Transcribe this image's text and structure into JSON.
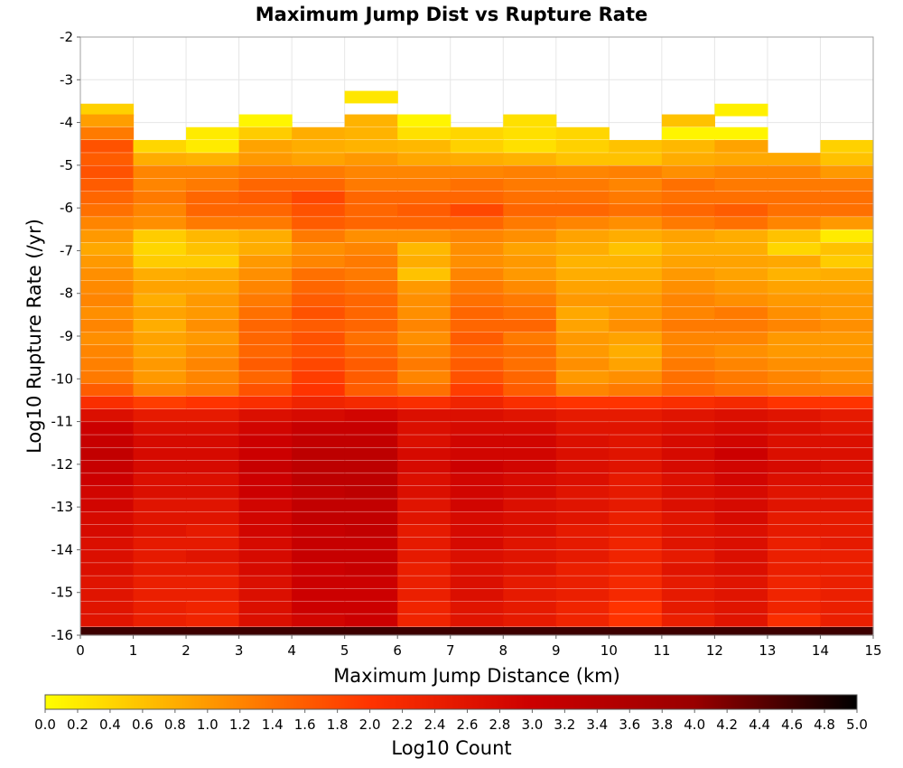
{
  "chart_data": {
    "type": "heatmap",
    "title": "Maximum Jump Dist vs Rupture Rate",
    "xlabel": "Maximum Jump Distance (km)",
    "ylabel": "Log10 Rupture Rate (/yr)",
    "colorbar_label": "Log10 Count",
    "xlim": [
      0,
      15
    ],
    "ylim": [
      -16,
      -2
    ],
    "x_bin_width": 1,
    "y_bin_width": 0.28,
    "x_ticks": [
      "0",
      "1",
      "2",
      "3",
      "4",
      "5",
      "6",
      "7",
      "8",
      "9",
      "10",
      "11",
      "12",
      "13",
      "14",
      "15"
    ],
    "y_ticks": [
      "-2",
      "-3",
      "-4",
      "-5",
      "-6",
      "-7",
      "-8",
      "-9",
      "-10",
      "-11",
      "-12",
      "-13",
      "-14",
      "-15",
      "-16"
    ],
    "colorbar_range": [
      0,
      5
    ],
    "colorbar_ticks": [
      "0.0",
      "0.2",
      "0.4",
      "0.6",
      "0.8",
      "1.0",
      "1.2",
      "1.4",
      "1.6",
      "1.8",
      "2.0",
      "2.2",
      "2.4",
      "2.6",
      "2.8",
      "3.0",
      "3.2",
      "3.4",
      "3.6",
      "3.8",
      "4.0",
      "4.2",
      "4.4",
      "4.6",
      "4.8",
      "5.0"
    ],
    "colormap": [
      "#ffff00",
      "#ff9900",
      "#ff3300",
      "#cc0000",
      "#990000",
      "#000000"
    ],
    "grid": true,
    "rows": [
      {
        "y": -3.4,
        "values": [
          null,
          null,
          null,
          null,
          null,
          0.25,
          null,
          null,
          null,
          null,
          null,
          null,
          null,
          null,
          null
        ]
      },
      {
        "y": -3.7,
        "values": [
          0.45,
          null,
          null,
          null,
          null,
          null,
          null,
          null,
          null,
          null,
          null,
          null,
          0.15,
          null,
          null
        ]
      },
      {
        "y": -3.95,
        "values": [
          0.95,
          null,
          null,
          0.1,
          null,
          0.75,
          0.1,
          null,
          0.3,
          null,
          null,
          0.6,
          null,
          null,
          null
        ]
      },
      {
        "y": -4.25,
        "values": [
          1.3,
          null,
          0.2,
          0.5,
          0.8,
          0.75,
          0.3,
          0.4,
          0.3,
          0.4,
          null,
          0.1,
          0.1,
          null,
          null
        ]
      },
      {
        "y": -4.55,
        "values": [
          1.7,
          0.4,
          0.2,
          0.9,
          0.8,
          0.75,
          0.7,
          0.45,
          0.3,
          0.45,
          0.6,
          0.7,
          0.9,
          null,
          0.45
        ]
      },
      {
        "y": -4.85,
        "values": [
          1.6,
          0.8,
          0.75,
          1.0,
          0.9,
          1.0,
          0.85,
          0.8,
          0.75,
          0.6,
          0.6,
          0.8,
          0.85,
          0.85,
          0.6
        ]
      },
      {
        "y": -5.15,
        "values": [
          1.7,
          1.2,
          1.2,
          1.3,
          1.3,
          1.2,
          1.2,
          1.2,
          1.25,
          1.2,
          1.25,
          1.1,
          1.2,
          1.2,
          1.0
        ]
      },
      {
        "y": -5.45,
        "values": [
          1.6,
          1.2,
          1.3,
          1.5,
          1.5,
          1.3,
          1.3,
          1.4,
          1.3,
          1.3,
          1.2,
          1.4,
          1.3,
          1.3,
          1.3
        ]
      },
      {
        "y": -5.75,
        "values": [
          1.5,
          1.3,
          1.5,
          1.6,
          1.8,
          1.5,
          1.5,
          1.5,
          1.4,
          1.4,
          1.3,
          1.4,
          1.4,
          1.4,
          1.4
        ]
      },
      {
        "y": -6.05,
        "values": [
          1.4,
          1.2,
          1.5,
          1.5,
          1.7,
          1.5,
          1.6,
          1.8,
          1.5,
          1.5,
          1.4,
          1.5,
          1.6,
          1.4,
          1.4
        ]
      },
      {
        "y": -6.35,
        "values": [
          1.2,
          1.1,
          1.3,
          1.3,
          1.6,
          1.5,
          1.5,
          1.5,
          1.3,
          1.2,
          1.1,
          1.3,
          1.4,
          1.2,
          1.0
        ]
      },
      {
        "y": -6.65,
        "values": [
          1.0,
          0.5,
          0.7,
          0.8,
          1.3,
          1.1,
          1.1,
          1.2,
          1.1,
          0.9,
          0.8,
          0.9,
          0.8,
          0.6,
          0.2
        ]
      },
      {
        "y": -6.95,
        "values": [
          0.85,
          0.4,
          0.6,
          0.8,
          1.1,
          1.2,
          0.7,
          1.1,
          0.9,
          0.8,
          0.6,
          0.8,
          0.8,
          0.4,
          0.6
        ]
      },
      {
        "y": -7.25,
        "values": [
          1.0,
          0.5,
          0.5,
          1.0,
          1.2,
          1.3,
          0.8,
          1.1,
          1.0,
          0.75,
          0.75,
          0.9,
          0.9,
          0.85,
          0.5
        ]
      },
      {
        "y": -7.55,
        "values": [
          1.1,
          0.8,
          0.85,
          1.1,
          1.4,
          1.3,
          0.6,
          1.2,
          1.0,
          0.8,
          0.8,
          1.0,
          0.9,
          0.75,
          0.8
        ]
      },
      {
        "y": -7.85,
        "values": [
          1.15,
          0.9,
          0.9,
          1.2,
          1.5,
          1.4,
          1.0,
          1.3,
          1.15,
          0.9,
          0.9,
          1.1,
          1.0,
          0.9,
          0.9
        ]
      },
      {
        "y": -8.15,
        "values": [
          1.2,
          0.8,
          1.0,
          1.3,
          1.6,
          1.5,
          1.1,
          1.4,
          1.3,
          1.0,
          1.0,
          1.2,
          1.1,
          1.0,
          1.0
        ]
      },
      {
        "y": -8.45,
        "values": [
          1.1,
          0.9,
          1.0,
          1.4,
          1.7,
          1.5,
          1.1,
          1.5,
          1.4,
          0.85,
          1.0,
          1.2,
          1.3,
          1.1,
          1.0
        ]
      },
      {
        "y": -8.75,
        "values": [
          1.2,
          0.8,
          1.1,
          1.5,
          1.6,
          1.5,
          1.2,
          1.5,
          1.5,
          0.9,
          1.1,
          1.3,
          1.3,
          1.2,
          1.1
        ]
      },
      {
        "y": -9.05,
        "values": [
          1.1,
          0.9,
          1.0,
          1.5,
          1.7,
          1.4,
          1.1,
          1.6,
          1.3,
          1.0,
          0.9,
          1.2,
          1.2,
          1.0,
          1.0
        ]
      },
      {
        "y": -9.35,
        "values": [
          1.2,
          0.9,
          1.1,
          1.5,
          1.7,
          1.5,
          1.2,
          1.5,
          1.4,
          1.0,
          0.8,
          1.2,
          1.1,
          1.0,
          1.0
        ]
      },
      {
        "y": -9.65,
        "values": [
          1.25,
          1.0,
          1.2,
          1.6,
          1.8,
          1.6,
          1.3,
          1.6,
          1.4,
          1.1,
          0.9,
          1.3,
          1.2,
          1.1,
          1.1
        ]
      },
      {
        "y": -9.95,
        "values": [
          1.3,
          1.0,
          1.2,
          1.5,
          1.9,
          1.6,
          1.2,
          1.7,
          1.5,
          1.0,
          1.1,
          1.4,
          1.3,
          1.2,
          1.1
        ]
      },
      {
        "y": -10.25,
        "values": [
          1.6,
          1.2,
          1.3,
          1.7,
          2.0,
          1.6,
          1.4,
          1.9,
          1.6,
          1.2,
          1.3,
          1.5,
          1.4,
          1.3,
          1.3
        ]
      },
      {
        "y": -10.55,
        "values": [
          2.1,
          1.9,
          2.0,
          2.1,
          2.3,
          2.2,
          2.1,
          2.3,
          2.1,
          2.0,
          2.0,
          2.1,
          2.2,
          2.0,
          2.0
        ]
      },
      {
        "y": -10.85,
        "values": [
          2.7,
          2.5,
          2.5,
          2.7,
          2.8,
          2.9,
          2.7,
          2.7,
          2.6,
          2.5,
          2.5,
          2.6,
          2.7,
          2.6,
          2.5
        ]
      },
      {
        "y": -11.15,
        "values": [
          3.0,
          2.7,
          2.7,
          2.9,
          3.1,
          3.1,
          2.7,
          2.8,
          2.8,
          2.6,
          2.6,
          2.7,
          2.8,
          2.7,
          2.6
        ]
      },
      {
        "y": -11.45,
        "values": [
          3.1,
          2.8,
          2.8,
          3.0,
          3.2,
          3.2,
          2.7,
          2.9,
          2.9,
          2.7,
          2.6,
          2.8,
          2.9,
          2.7,
          2.7
        ]
      },
      {
        "y": -11.75,
        "values": [
          3.2,
          2.8,
          2.8,
          3.0,
          3.3,
          3.3,
          2.8,
          2.9,
          2.9,
          2.7,
          2.6,
          2.8,
          3.0,
          2.7,
          2.7
        ]
      },
      {
        "y": -12.05,
        "values": [
          3.1,
          2.8,
          2.8,
          3.1,
          3.3,
          3.3,
          2.8,
          3.0,
          2.9,
          2.7,
          2.6,
          2.8,
          2.9,
          2.8,
          2.7
        ]
      },
      {
        "y": -12.35,
        "values": [
          3.0,
          2.7,
          2.7,
          3.0,
          3.3,
          3.3,
          2.7,
          2.9,
          2.8,
          2.7,
          2.5,
          2.7,
          2.9,
          2.7,
          2.7
        ]
      },
      {
        "y": -12.65,
        "values": [
          2.9,
          2.7,
          2.7,
          3.0,
          3.2,
          3.3,
          2.7,
          2.9,
          2.8,
          2.6,
          2.5,
          2.7,
          2.8,
          2.6,
          2.6
        ]
      },
      {
        "y": -12.95,
        "values": [
          2.9,
          2.6,
          2.6,
          2.9,
          3.2,
          3.2,
          2.6,
          2.9,
          2.7,
          2.6,
          2.5,
          2.7,
          2.8,
          2.6,
          2.6
        ]
      },
      {
        "y": -13.25,
        "values": [
          2.8,
          2.6,
          2.6,
          2.9,
          3.2,
          3.2,
          2.6,
          2.8,
          2.7,
          2.6,
          2.4,
          2.6,
          2.8,
          2.5,
          2.5
        ]
      },
      {
        "y": -13.55,
        "values": [
          2.8,
          2.6,
          2.5,
          2.9,
          3.1,
          3.2,
          2.5,
          2.8,
          2.7,
          2.5,
          2.4,
          2.6,
          2.7,
          2.5,
          2.5
        ]
      },
      {
        "y": -13.85,
        "values": [
          2.7,
          2.5,
          2.5,
          2.8,
          3.1,
          3.1,
          2.5,
          2.8,
          2.6,
          2.5,
          2.3,
          2.6,
          2.7,
          2.4,
          2.5
        ]
      },
      {
        "y": -14.15,
        "values": [
          2.7,
          2.5,
          2.6,
          2.8,
          3.1,
          3.1,
          2.5,
          2.7,
          2.6,
          2.5,
          2.3,
          2.5,
          2.7,
          2.4,
          2.4
        ]
      },
      {
        "y": -14.45,
        "values": [
          2.7,
          2.5,
          2.5,
          2.8,
          3.0,
          3.1,
          2.4,
          2.7,
          2.6,
          2.4,
          2.3,
          2.6,
          2.7,
          2.4,
          2.4
        ]
      },
      {
        "y": -14.75,
        "values": [
          2.6,
          2.4,
          2.4,
          2.7,
          3.0,
          3.0,
          2.4,
          2.7,
          2.5,
          2.4,
          2.2,
          2.5,
          2.6,
          2.3,
          2.4
        ]
      },
      {
        "y": -15.05,
        "values": [
          2.6,
          2.4,
          2.4,
          2.7,
          3.0,
          3.0,
          2.4,
          2.7,
          2.5,
          2.4,
          2.2,
          2.5,
          2.6,
          2.3,
          2.4
        ]
      },
      {
        "y": -15.35,
        "values": [
          2.6,
          2.4,
          2.3,
          2.7,
          3.0,
          3.0,
          2.3,
          2.6,
          2.5,
          2.3,
          2.0,
          2.5,
          2.6,
          2.3,
          2.4
        ]
      },
      {
        "y": -15.65,
        "values": [
          2.6,
          2.4,
          2.3,
          2.7,
          2.9,
          3.0,
          2.3,
          2.6,
          2.5,
          2.3,
          2.0,
          2.4,
          2.6,
          2.1,
          2.4
        ]
      },
      {
        "y": -15.95,
        "values": [
          4.6,
          4.6,
          4.6,
          4.6,
          4.6,
          4.6,
          4.6,
          4.6,
          4.6,
          4.6,
          4.6,
          4.6,
          4.6,
          4.6,
          4.6
        ]
      }
    ]
  }
}
